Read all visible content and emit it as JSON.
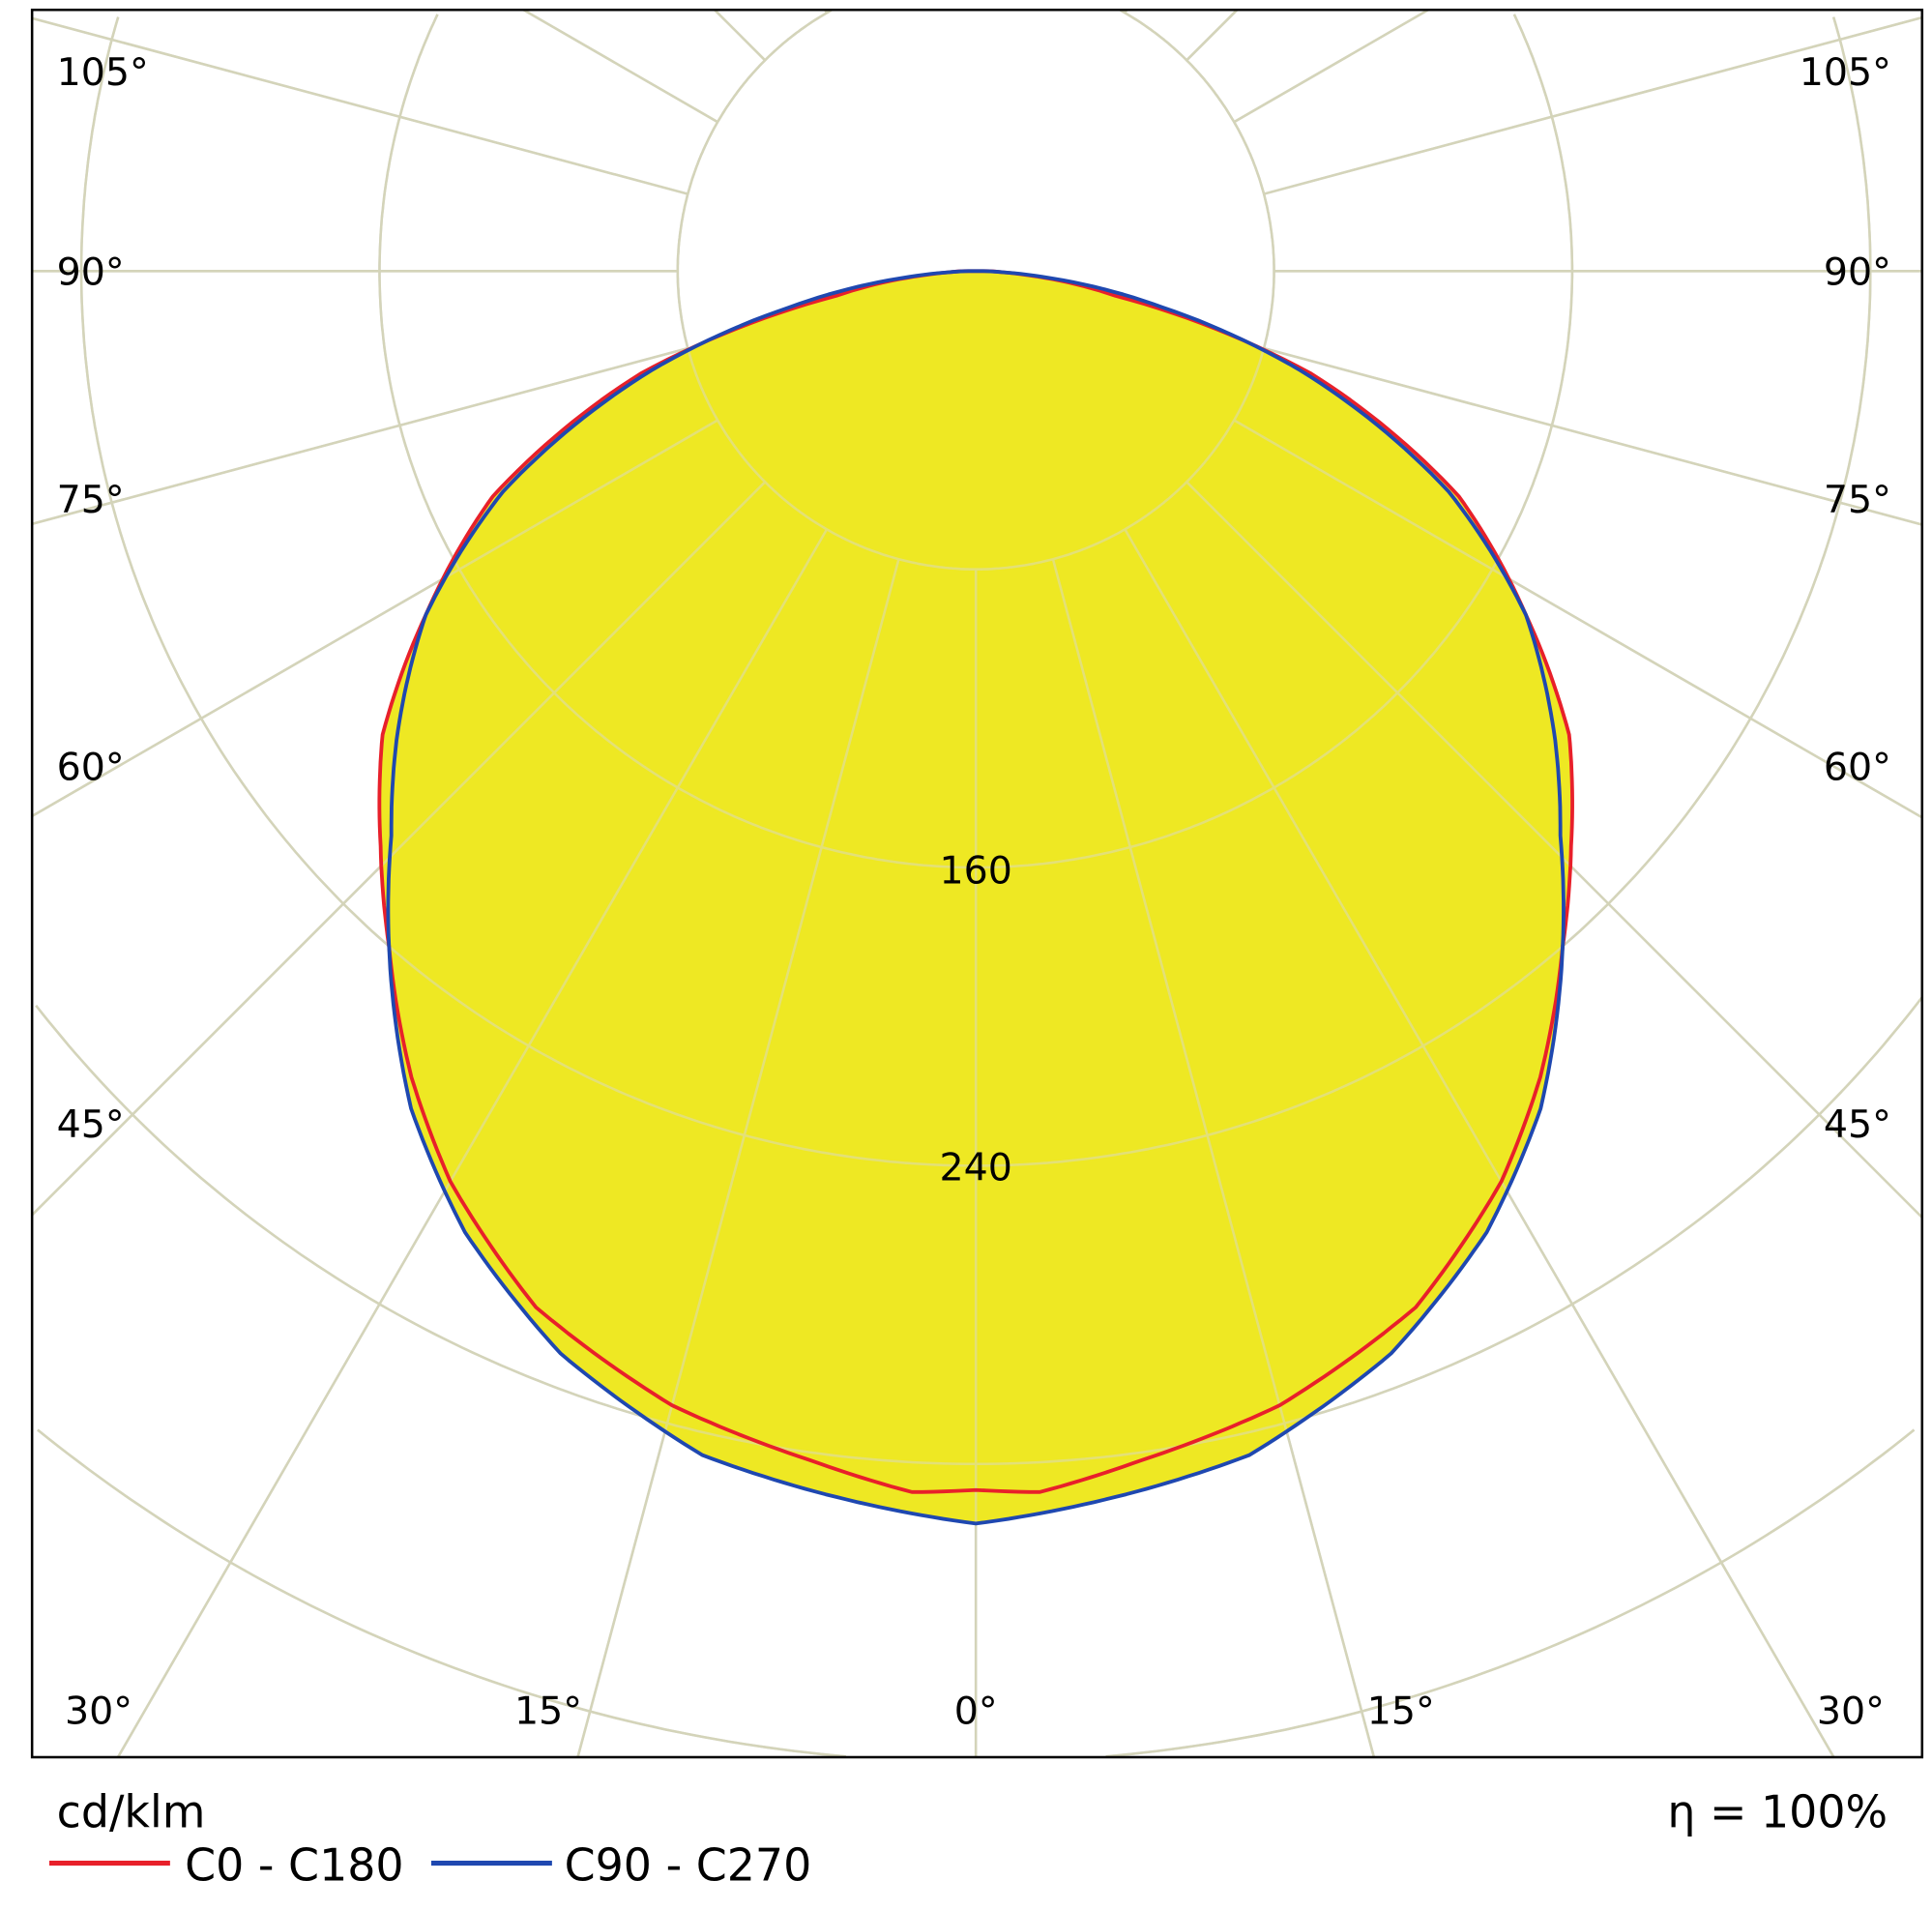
{
  "chart_data": {
    "type": "polar",
    "title": "",
    "unit_label": "cd/klm",
    "efficiency_label": "η = 100%",
    "ring_values": [
      80,
      160,
      240,
      320,
      400,
      480,
      560
    ],
    "ring_labels": [
      "160",
      "240"
    ],
    "ring_label_values": [
      160,
      240
    ],
    "angle_step_deg": 15,
    "angle_labels": {
      "left": [
        "105°",
        "90°",
        "75°",
        "60°",
        "45°"
      ],
      "right": [
        "105°",
        "90°",
        "75°",
        "60°",
        "45°"
      ],
      "bottom": [
        "30°",
        "15°",
        "0°",
        "15°",
        "30°"
      ]
    },
    "grid": true,
    "legend_placement": "bottom-left",
    "series": [
      {
        "name": "C0 - C180",
        "color": "#e8202a",
        "gamma_deg": [
          0,
          3,
          8,
          15,
          23,
          30,
          35,
          41,
          46,
          52,
          58,
          65,
          73,
          80,
          86,
          88,
          90
        ],
        "values": [
          327,
          328,
          322,
          315,
          302,
          282,
          264,
          240,
          222,
          202,
          174,
          143,
          94,
          38,
          12,
          6,
          3
        ]
      },
      {
        "name": "C90 - C270",
        "color": "#1f48b0",
        "gamma_deg": [
          0,
          13,
          21,
          28,
          34,
          41,
          46,
          51,
          58,
          65,
          73,
          79,
          85,
          88,
          90
        ],
        "values": [
          336,
          326,
          311,
          292,
          271,
          240,
          218,
          200,
          174,
          140,
          91,
          51,
          18,
          6,
          2
        ]
      }
    ],
    "fill_color": "#eee823"
  }
}
